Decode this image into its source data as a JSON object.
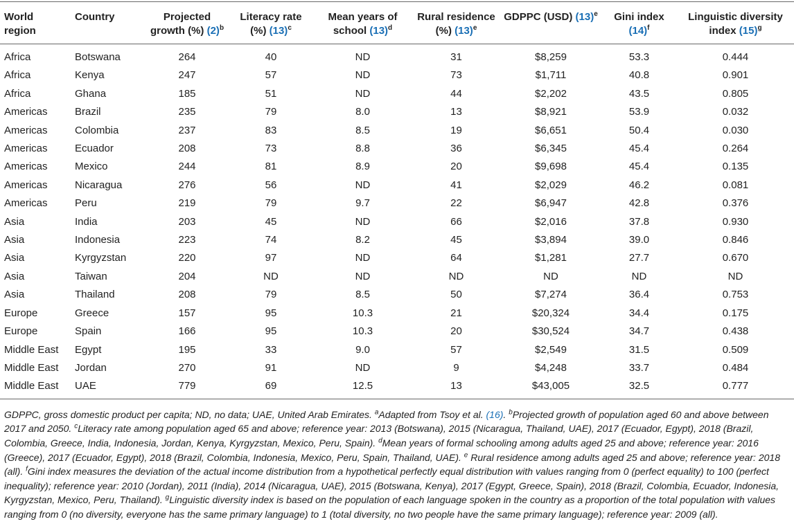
{
  "table": {
    "header": [
      {
        "label": "World region"
      },
      {
        "label": "Country"
      },
      {
        "label": "Projected growth (%)",
        "ref": "(2)",
        "note": "b"
      },
      {
        "label": "Literacy rate (%)",
        "ref": "(13)",
        "note": "c"
      },
      {
        "label": "Mean years of school",
        "ref": "(13)",
        "note": "d"
      },
      {
        "label": "Rural residence (%)",
        "ref": "(13)",
        "note": "e"
      },
      {
        "label": "GDPPC (USD)",
        "ref": "(13)",
        "note": "e"
      },
      {
        "label": "Gini index",
        "ref": "(14)",
        "note": "f"
      },
      {
        "label": "Linguistic diversity index",
        "ref": "(15)",
        "note": "g"
      }
    ],
    "rows": [
      [
        "Africa",
        "Botswana",
        "264",
        "40",
        "ND",
        "31",
        "$8,259",
        "53.3",
        "0.444"
      ],
      [
        "Africa",
        "Kenya",
        "247",
        "57",
        "ND",
        "73",
        "$1,711",
        "40.8",
        "0.901"
      ],
      [
        "Africa",
        "Ghana",
        "185",
        "51",
        "ND",
        "44",
        "$2,202",
        "43.5",
        "0.805"
      ],
      [
        "Americas",
        "Brazil",
        "235",
        "79",
        "8.0",
        "13",
        "$8,921",
        "53.9",
        "0.032"
      ],
      [
        "Americas",
        "Colombia",
        "237",
        "83",
        "8.5",
        "19",
        "$6,651",
        "50.4",
        "0.030"
      ],
      [
        "Americas",
        "Ecuador",
        "208",
        "73",
        "8.8",
        "36",
        "$6,345",
        "45.4",
        "0.264"
      ],
      [
        "Americas",
        "Mexico",
        "244",
        "81",
        "8.9",
        "20",
        "$9,698",
        "45.4",
        "0.135"
      ],
      [
        "Americas",
        "Nicaragua",
        "276",
        "56",
        "ND",
        "41",
        "$2,029",
        "46.2",
        "0.081"
      ],
      [
        "Americas",
        "Peru",
        "219",
        "79",
        "9.7",
        "22",
        "$6,947",
        "42.8",
        "0.376"
      ],
      [
        "Asia",
        "India",
        "203",
        "45",
        "ND",
        "66",
        "$2,016",
        "37.8",
        "0.930"
      ],
      [
        "Asia",
        "Indonesia",
        "223",
        "74",
        "8.2",
        "45",
        "$3,894",
        "39.0",
        "0.846"
      ],
      [
        "Asia",
        "Kyrgyzstan",
        "220",
        "97",
        "ND",
        "64",
        "$1,281",
        "27.7",
        "0.670"
      ],
      [
        "Asia",
        "Taiwan",
        "204",
        "ND",
        "ND",
        "ND",
        "ND",
        "ND",
        "ND"
      ],
      [
        "Asia",
        "Thailand",
        "208",
        "79",
        "8.5",
        "50",
        "$7,274",
        "36.4",
        "0.753"
      ],
      [
        "Europe",
        "Greece",
        "157",
        "95",
        "10.3",
        "21",
        "$20,324",
        "34.4",
        "0.175"
      ],
      [
        "Europe",
        "Spain",
        "166",
        "95",
        "10.3",
        "20",
        "$30,524",
        "34.7",
        "0.438"
      ],
      [
        "Middle East",
        "Egypt",
        "195",
        "33",
        "9.0",
        "57",
        "$2,549",
        "31.5",
        "0.509"
      ],
      [
        "Middle East",
        "Jordan",
        "270",
        "91",
        "ND",
        "9",
        "$4,248",
        "33.7",
        "0.484"
      ],
      [
        "Middle East",
        "UAE",
        "779",
        "69",
        "12.5",
        "13",
        "$43,005",
        "32.5",
        "0.777"
      ]
    ],
    "footnote": [
      {
        "text": "GDPPC, gross domestic product per capita; ND, no data; UAE, United Arab Emirates. "
      },
      {
        "sup": "a"
      },
      {
        "text": "Adapted from Tsoy et al. "
      },
      {
        "ref": "(16)"
      },
      {
        "text": ". "
      },
      {
        "sup": "b"
      },
      {
        "text": "Projected growth of population aged 60 and above between 2017 and 2050. "
      },
      {
        "sup": "c"
      },
      {
        "text": "Literacy rate among population aged 65 and above; reference year: 2013 (Botswana), 2015 (Nicaragua, Thailand, UAE), 2017 (Ecuador, Egypt), 2018 (Brazil, Colombia, Greece, India, Indonesia, Jordan, Kenya, Kyrgyzstan, Mexico, Peru, Spain). "
      },
      {
        "sup": "d"
      },
      {
        "text": "Mean years of formal schooling among adults aged 25 and above; reference year: 2016 (Greece), 2017 (Ecuador, Egypt), 2018 (Brazil, Colombia, Indonesia, Mexico, Peru, Spain, Thailand, UAE). "
      },
      {
        "sup": "e"
      },
      {
        "text": " Rural residence among adults aged 25 and above; reference year: 2018 (all). "
      },
      {
        "sup": "f"
      },
      {
        "text": "Gini index measures the deviation of the actual income distribution from a hypothetical perfectly equal distribution with values ranging from 0 (perfect equality) to 100 (perfect inequality); reference year: 2010 (Jordan), 2011 (India), 2014 (Nicaragua, UAE), 2015 (Botswana, Kenya), 2017 (Egypt, Greece, Spain), 2018 (Brazil, Colombia, Ecuador, Indonesia, Kyrgyzstan, Mexico, Peru, Thailand). "
      },
      {
        "sup": "g"
      },
      {
        "text": "Linguistic diversity index is based on the population of each language spoken in the country as a proportion of the total population with values ranging from 0 (no diversity, everyone has the same primary language) to 1 (total diversity, no two people have the same primary language); reference year: 2009 (all)."
      }
    ]
  }
}
